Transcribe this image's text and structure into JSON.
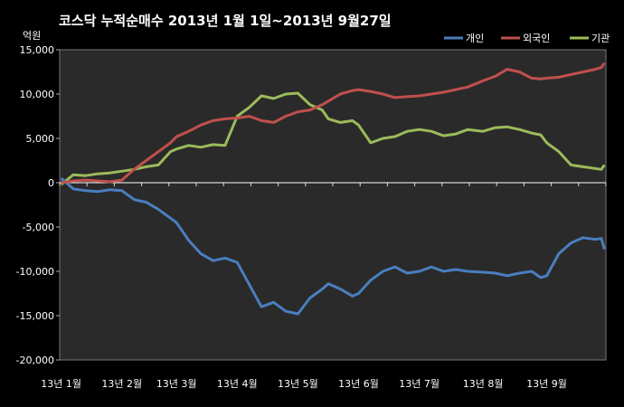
{
  "chart_data": {
    "type": "line",
    "title": "코스닥 누적순매수 2013년 1월 1일~2013년 9월27일",
    "unit_label": "억원",
    "ylim": [
      -20000,
      15000
    ],
    "y_ticks": [
      "15,000",
      "10,000",
      "5,000",
      "0",
      "-5,000",
      "-10,000",
      "-15,000",
      "-20,000"
    ],
    "y_tick_values": [
      15000,
      10000,
      5000,
      0,
      -5000,
      -10000,
      -15000,
      -20000
    ],
    "x_tick_labels": [
      "13년 1월",
      "13년 2월",
      "13년 3월",
      "13년 4월",
      "13년 5월",
      "13년 6월",
      "13년 7월",
      "13년 8월",
      "13년 9월"
    ],
    "x_tick_index": [
      0,
      20,
      38,
      58,
      78,
      98,
      118,
      139,
      160
    ],
    "n_points": 180,
    "grid": false,
    "legend_position": "top-right",
    "series": [
      {
        "name": "개인",
        "color": "#4a7ebf",
        "points": [
          [
            0,
            500
          ],
          [
            4,
            -700
          ],
          [
            8,
            -900
          ],
          [
            12,
            -1000
          ],
          [
            16,
            -800
          ],
          [
            20,
            -900
          ],
          [
            24,
            -1900
          ],
          [
            28,
            -2200
          ],
          [
            32,
            -3000
          ],
          [
            36,
            -4000
          ],
          [
            38,
            -4500
          ],
          [
            42,
            -6500
          ],
          [
            46,
            -8000
          ],
          [
            50,
            -8800
          ],
          [
            54,
            -8500
          ],
          [
            58,
            -9000
          ],
          [
            62,
            -11500
          ],
          [
            66,
            -14000
          ],
          [
            70,
            -13500
          ],
          [
            74,
            -14500
          ],
          [
            78,
            -14800
          ],
          [
            82,
            -13000
          ],
          [
            86,
            -12000
          ],
          [
            88,
            -11400
          ],
          [
            92,
            -12000
          ],
          [
            96,
            -12800
          ],
          [
            98,
            -12500
          ],
          [
            102,
            -11000
          ],
          [
            106,
            -10000
          ],
          [
            110,
            -9500
          ],
          [
            114,
            -10200
          ],
          [
            118,
            -10000
          ],
          [
            122,
            -9500
          ],
          [
            126,
            -10000
          ],
          [
            130,
            -9800
          ],
          [
            134,
            -10000
          ],
          [
            139,
            -10100
          ],
          [
            143,
            -10200
          ],
          [
            147,
            -10500
          ],
          [
            151,
            -10200
          ],
          [
            155,
            -10000
          ],
          [
            158,
            -10700
          ],
          [
            160,
            -10500
          ],
          [
            164,
            -8000
          ],
          [
            168,
            -6800
          ],
          [
            172,
            -6200
          ],
          [
            176,
            -6400
          ],
          [
            178,
            -6300
          ],
          [
            179,
            -7500
          ]
        ]
      },
      {
        "name": "외국인",
        "color": "#c0504d",
        "points": [
          [
            0,
            0
          ],
          [
            4,
            200
          ],
          [
            8,
            300
          ],
          [
            12,
            200
          ],
          [
            16,
            100
          ],
          [
            20,
            300
          ],
          [
            24,
            1500
          ],
          [
            28,
            2500
          ],
          [
            32,
            3500
          ],
          [
            36,
            4500
          ],
          [
            38,
            5200
          ],
          [
            42,
            5800
          ],
          [
            46,
            6500
          ],
          [
            50,
            7000
          ],
          [
            54,
            7200
          ],
          [
            58,
            7300
          ],
          [
            62,
            7500
          ],
          [
            66,
            7000
          ],
          [
            70,
            6800
          ],
          [
            74,
            7500
          ],
          [
            78,
            8000
          ],
          [
            82,
            8200
          ],
          [
            86,
            8800
          ],
          [
            88,
            9200
          ],
          [
            92,
            10000
          ],
          [
            96,
            10400
          ],
          [
            98,
            10500
          ],
          [
            102,
            10300
          ],
          [
            106,
            10000
          ],
          [
            110,
            9600
          ],
          [
            114,
            9700
          ],
          [
            118,
            9800
          ],
          [
            122,
            10000
          ],
          [
            126,
            10200
          ],
          [
            130,
            10500
          ],
          [
            134,
            10800
          ],
          [
            139,
            11500
          ],
          [
            143,
            12000
          ],
          [
            147,
            12800
          ],
          [
            151,
            12500
          ],
          [
            155,
            11800
          ],
          [
            158,
            11700
          ],
          [
            160,
            11800
          ],
          [
            164,
            11900
          ],
          [
            168,
            12200
          ],
          [
            172,
            12500
          ],
          [
            176,
            12800
          ],
          [
            178,
            13000
          ],
          [
            179,
            13500
          ]
        ]
      },
      {
        "name": "기관",
        "color": "#9bbb59",
        "points": [
          [
            0,
            -200
          ],
          [
            4,
            900
          ],
          [
            8,
            800
          ],
          [
            12,
            1000
          ],
          [
            16,
            1100
          ],
          [
            20,
            1300
          ],
          [
            24,
            1500
          ],
          [
            28,
            1800
          ],
          [
            32,
            2000
          ],
          [
            36,
            3500
          ],
          [
            38,
            3800
          ],
          [
            42,
            4200
          ],
          [
            46,
            4000
          ],
          [
            50,
            4300
          ],
          [
            54,
            4200
          ],
          [
            58,
            7500
          ],
          [
            62,
            8500
          ],
          [
            66,
            9800
          ],
          [
            70,
            9500
          ],
          [
            74,
            10000
          ],
          [
            78,
            10100
          ],
          [
            82,
            8800
          ],
          [
            86,
            8200
          ],
          [
            88,
            7200
          ],
          [
            92,
            6800
          ],
          [
            96,
            7000
          ],
          [
            98,
            6500
          ],
          [
            102,
            4500
          ],
          [
            106,
            5000
          ],
          [
            110,
            5200
          ],
          [
            114,
            5800
          ],
          [
            118,
            6000
          ],
          [
            122,
            5800
          ],
          [
            126,
            5300
          ],
          [
            130,
            5500
          ],
          [
            134,
            6000
          ],
          [
            139,
            5800
          ],
          [
            143,
            6200
          ],
          [
            147,
            6300
          ],
          [
            151,
            6000
          ],
          [
            155,
            5600
          ],
          [
            158,
            5400
          ],
          [
            160,
            4500
          ],
          [
            164,
            3500
          ],
          [
            168,
            2000
          ],
          [
            172,
            1800
          ],
          [
            176,
            1600
          ],
          [
            178,
            1500
          ],
          [
            179,
            2000
          ]
        ]
      }
    ]
  }
}
